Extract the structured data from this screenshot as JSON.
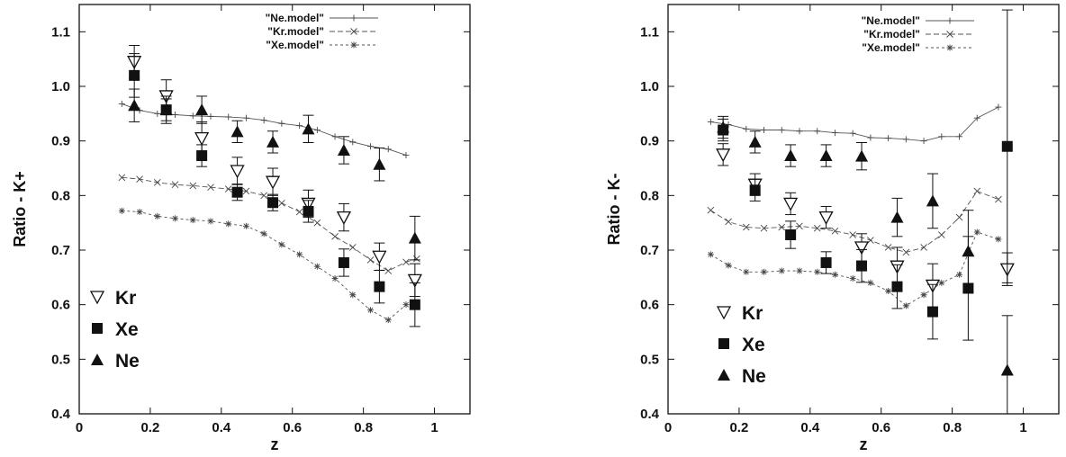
{
  "chart_data": [
    {
      "type": "scatter",
      "xlabel": "z",
      "ylabel": "Ratio - K+",
      "xlim": [
        0,
        1.1
      ],
      "ylim": [
        0.4,
        1.15
      ],
      "xticks": [
        "0",
        "0.2",
        "0.4",
        "0.6",
        "0.8",
        "1"
      ],
      "yticks": [
        "0.4",
        "0.5",
        "0.6",
        "0.7",
        "0.8",
        "0.9",
        "1.0",
        "1.1"
      ],
      "xtick_values": [
        0,
        0.2,
        0.4,
        0.6,
        0.8,
        1.0
      ],
      "ytick_values": [
        0.4,
        0.5,
        0.6,
        0.7,
        0.8,
        0.9,
        1.0,
        1.1
      ],
      "models": [
        {
          "name": "\"Ne.model\"",
          "marker": "plus",
          "dash": "none",
          "x": [
            0.12,
            0.17,
            0.22,
            0.27,
            0.32,
            0.37,
            0.42,
            0.47,
            0.52,
            0.57,
            0.62,
            0.67,
            0.72,
            0.77,
            0.82,
            0.87,
            0.92
          ],
          "y": [
            0.968,
            0.956,
            0.95,
            0.948,
            0.946,
            0.945,
            0.944,
            0.942,
            0.938,
            0.932,
            0.928,
            0.92,
            0.908,
            0.898,
            0.89,
            0.885,
            0.874
          ]
        },
        {
          "name": "\"Kr.model\"",
          "marker": "x",
          "dash": "6,3",
          "x": [
            0.12,
            0.17,
            0.22,
            0.27,
            0.32,
            0.37,
            0.42,
            0.47,
            0.52,
            0.57,
            0.62,
            0.67,
            0.72,
            0.77,
            0.82,
            0.87,
            0.92,
            0.95
          ],
          "y": [
            0.833,
            0.83,
            0.824,
            0.82,
            0.818,
            0.815,
            0.812,
            0.808,
            0.8,
            0.786,
            0.77,
            0.75,
            0.725,
            0.705,
            0.682,
            0.662,
            0.678,
            0.684
          ]
        },
        {
          "name": "\"Xe.model\"",
          "marker": "star",
          "dash": "3,3",
          "x": [
            0.12,
            0.17,
            0.22,
            0.27,
            0.32,
            0.37,
            0.42,
            0.47,
            0.52,
            0.57,
            0.62,
            0.67,
            0.72,
            0.77,
            0.82,
            0.87,
            0.92
          ],
          "y": [
            0.772,
            0.77,
            0.762,
            0.758,
            0.755,
            0.753,
            0.748,
            0.744,
            0.73,
            0.71,
            0.692,
            0.67,
            0.648,
            0.618,
            0.59,
            0.572,
            0.6
          ]
        }
      ],
      "data_series": [
        {
          "name": "Kr",
          "marker": "triangle-down-open",
          "x": [
            0.155,
            0.245,
            0.345,
            0.445,
            0.545,
            0.645,
            0.745,
            0.845,
            0.945
          ],
          "y": [
            1.045,
            0.982,
            0.905,
            0.845,
            0.825,
            0.785,
            0.76,
            0.688,
            0.645
          ],
          "err": [
            0.03,
            0.03,
            0.03,
            0.025,
            0.025,
            0.025,
            0.025,
            0.025,
            0.03
          ]
        },
        {
          "name": "Xe",
          "marker": "square-filled",
          "x": [
            0.155,
            0.245,
            0.345,
            0.445,
            0.545,
            0.645,
            0.745,
            0.845,
            0.945
          ],
          "y": [
            1.02,
            0.957,
            0.873,
            0.806,
            0.787,
            0.771,
            0.677,
            0.633,
            0.6
          ],
          "err": [
            0.04,
            0.025,
            0.02,
            0.015,
            0.015,
            0.02,
            0.025,
            0.03,
            0.04
          ]
        },
        {
          "name": "Ne",
          "marker": "triangle-up-filled",
          "x": [
            0.155,
            0.245,
            0.345,
            0.445,
            0.545,
            0.645,
            0.745,
            0.845,
            0.945
          ],
          "y": [
            0.965,
            0.957,
            0.957,
            0.917,
            0.898,
            0.922,
            0.883,
            0.857,
            0.722
          ],
          "err": [
            0.03,
            0.02,
            0.025,
            0.02,
            0.02,
            0.025,
            0.025,
            0.03,
            0.04
          ]
        }
      ]
    },
    {
      "type": "scatter",
      "xlabel": "z",
      "ylabel": "Ratio - K-",
      "xlim": [
        0,
        1.1
      ],
      "ylim": [
        0.4,
        1.15
      ],
      "xticks": [
        "0",
        "0.2",
        "0.4",
        "0.6",
        "0.8",
        "1"
      ],
      "yticks": [
        "0.4",
        "0.5",
        "0.6",
        "0.7",
        "0.8",
        "0.9",
        "1.0",
        "1.1"
      ],
      "xtick_values": [
        0,
        0.2,
        0.4,
        0.6,
        0.8,
        1.0
      ],
      "ytick_values": [
        0.4,
        0.5,
        0.6,
        0.7,
        0.8,
        0.9,
        1.0,
        1.1
      ],
      "models": [
        {
          "name": "\"Ne.model\"",
          "marker": "plus",
          "dash": "none",
          "x": [
            0.12,
            0.17,
            0.22,
            0.27,
            0.32,
            0.37,
            0.42,
            0.47,
            0.52,
            0.57,
            0.62,
            0.67,
            0.72,
            0.77,
            0.82,
            0.87,
            0.93
          ],
          "y": [
            0.935,
            0.93,
            0.922,
            0.92,
            0.92,
            0.918,
            0.918,
            0.915,
            0.914,
            0.906,
            0.905,
            0.903,
            0.9,
            0.908,
            0.908,
            0.942,
            0.962
          ]
        },
        {
          "name": "\"Kr.model\"",
          "marker": "x",
          "dash": "6,3",
          "x": [
            0.12,
            0.17,
            0.22,
            0.27,
            0.32,
            0.37,
            0.42,
            0.47,
            0.52,
            0.57,
            0.62,
            0.67,
            0.72,
            0.77,
            0.82,
            0.87,
            0.93
          ],
          "y": [
            0.773,
            0.752,
            0.742,
            0.74,
            0.742,
            0.744,
            0.74,
            0.735,
            0.728,
            0.718,
            0.705,
            0.696,
            0.705,
            0.728,
            0.76,
            0.808,
            0.793
          ]
        },
        {
          "name": "\"Xe.model\"",
          "marker": "star",
          "dash": "3,3",
          "x": [
            0.12,
            0.17,
            0.22,
            0.27,
            0.32,
            0.37,
            0.42,
            0.47,
            0.52,
            0.57,
            0.62,
            0.67,
            0.72,
            0.77,
            0.82,
            0.87,
            0.93
          ],
          "y": [
            0.692,
            0.672,
            0.66,
            0.66,
            0.662,
            0.662,
            0.66,
            0.655,
            0.648,
            0.64,
            0.625,
            0.598,
            0.618,
            0.64,
            0.655,
            0.733,
            0.72
          ]
        }
      ],
      "data_series": [
        {
          "name": "Kr",
          "marker": "triangle-down-open",
          "x": [
            0.155,
            0.245,
            0.345,
            0.445,
            0.545,
            0.645,
            0.745,
            0.955
          ],
          "y": [
            0.875,
            0.82,
            0.785,
            0.76,
            0.705,
            0.67,
            0.635,
            0.665
          ],
          "err": [
            0.02,
            0.02,
            0.02,
            0.02,
            0.025,
            0.035,
            0.04,
            0.03
          ]
        },
        {
          "name": "Xe",
          "marker": "square-filled",
          "x": [
            0.155,
            0.245,
            0.345,
            0.445,
            0.545,
            0.645,
            0.745,
            0.845,
            0.955
          ],
          "y": [
            0.92,
            0.81,
            0.728,
            0.677,
            0.671,
            0.633,
            0.587,
            0.63,
            0.89
          ],
          "err": [
            0.02,
            0.02,
            0.025,
            0.02,
            0.03,
            0.04,
            0.05,
            0.095,
            0.25
          ]
        },
        {
          "name": "Ne",
          "marker": "triangle-up-filled",
          "x": [
            0.155,
            0.245,
            0.345,
            0.445,
            0.545,
            0.645,
            0.745,
            0.845,
            0.955
          ],
          "y": [
            0.925,
            0.898,
            0.873,
            0.873,
            0.872,
            0.76,
            0.79,
            0.698,
            0.48
          ],
          "err": [
            0.02,
            0.02,
            0.02,
            0.02,
            0.025,
            0.035,
            0.05,
            0.075,
            0.1
          ]
        }
      ]
    }
  ]
}
